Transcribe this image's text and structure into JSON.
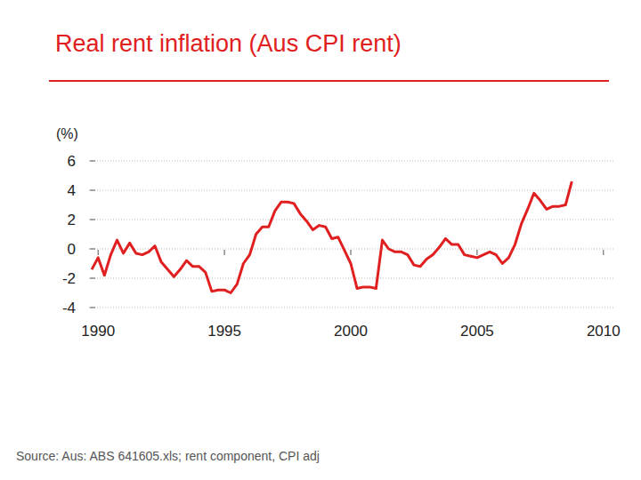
{
  "chart_data": {
    "type": "line",
    "title": "Real rent inflation (Aus CPI rent)",
    "y_label": "(%)",
    "source": "Source: Aus: ABS 641605.xls; rent component, CPI adj",
    "color": "#e02020",
    "grid": true,
    "x": [
      1989.75,
      1990,
      1990.25,
      1990.5,
      1990.75,
      1991,
      1991.25,
      1991.5,
      1991.75,
      1992,
      1992.25,
      1992.5,
      1992.75,
      1993,
      1993.25,
      1993.5,
      1993.75,
      1994,
      1994.25,
      1994.5,
      1994.75,
      1995,
      1995.25,
      1995.5,
      1995.75,
      1996,
      1996.25,
      1996.5,
      1996.75,
      1997,
      1997.25,
      1997.5,
      1997.75,
      1998,
      1998.25,
      1998.5,
      1998.75,
      1999,
      1999.25,
      1999.5,
      1999.75,
      2000,
      2000.25,
      2000.5,
      2000.75,
      2001,
      2001.25,
      2001.5,
      2001.75,
      2002,
      2002.25,
      2002.5,
      2002.75,
      2003,
      2003.25,
      2003.5,
      2003.75,
      2004,
      2004.25,
      2004.5,
      2004.75,
      2005,
      2005.25,
      2005.5,
      2005.75,
      2006,
      2006.25,
      2006.5,
      2006.75,
      2007,
      2007.25,
      2007.5,
      2007.75,
      2008,
      2008.25,
      2008.5,
      2008.75
    ],
    "values": [
      -1.4,
      -0.6,
      -1.8,
      -0.4,
      0.6,
      -0.3,
      0.4,
      -0.3,
      -0.4,
      -0.2,
      0.2,
      -0.9,
      -1.4,
      -1.9,
      -1.4,
      -0.8,
      -1.2,
      -1.2,
      -1.6,
      -2.9,
      -2.8,
      -2.8,
      -3.0,
      -2.4,
      -1.0,
      -0.4,
      1.0,
      1.5,
      1.5,
      2.6,
      3.2,
      3.2,
      3.1,
      2.4,
      1.9,
      1.3,
      1.6,
      1.5,
      0.7,
      0.8,
      -0.1,
      -1.0,
      -2.7,
      -2.6,
      -2.6,
      -2.7,
      0.6,
      0.0,
      -0.2,
      -0.2,
      -0.4,
      -1.1,
      -1.2,
      -0.7,
      -0.4,
      0.1,
      0.7,
      0.3,
      0.3,
      -0.4,
      -0.5,
      -0.6,
      -0.4,
      -0.2,
      -0.4,
      -1.0,
      -0.6,
      0.3,
      1.7,
      2.7,
      3.8,
      3.3,
      2.7,
      2.9,
      2.9,
      3.0,
      4.6
    ],
    "xlim": [
      1989.5,
      2010.5
    ],
    "xticks": [
      1990,
      1995,
      2000,
      2005,
      2010
    ],
    "ylim": [
      -4,
      6
    ],
    "yticks": [
      -4,
      -2,
      0,
      2,
      4,
      6
    ]
  }
}
